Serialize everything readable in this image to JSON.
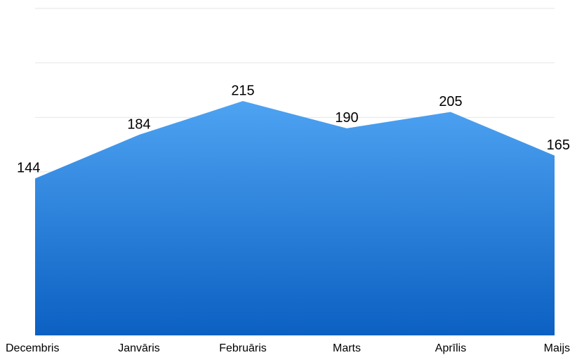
{
  "chart_data": {
    "type": "area",
    "categories": [
      "Decembris",
      "Janvāris",
      "Februāris",
      "Marts",
      "Aprīlis",
      "Maijs"
    ],
    "values": [
      144,
      184,
      215,
      190,
      205,
      165
    ],
    "color": "#2f86e0",
    "ylim": [
      0,
      300
    ],
    "yticks": [
      0,
      50,
      100,
      150,
      200,
      250,
      300
    ],
    "grid": true
  }
}
